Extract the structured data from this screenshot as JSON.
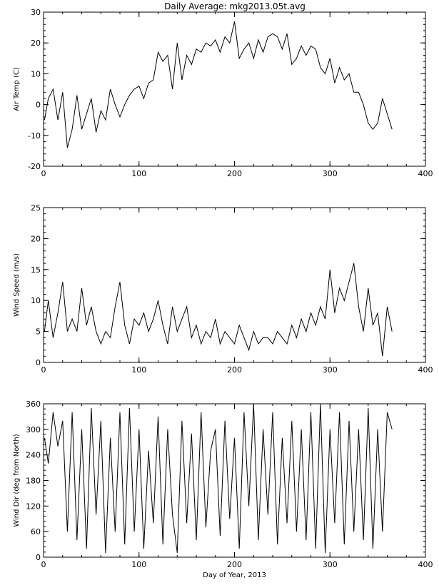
{
  "figure": {
    "title": "Daily Average: mkg2013.05t.avg"
  },
  "chart_data": [
    {
      "type": "line",
      "xlabel": "",
      "ylabel": "Air Temp (C)",
      "xlim": [
        0,
        400
      ],
      "ylim": [
        -20,
        30
      ],
      "xticks": [
        0,
        100,
        200,
        300,
        400
      ],
      "yticks": [
        -20,
        -10,
        0,
        10,
        20,
        30
      ],
      "grid": false,
      "x": [
        1,
        5,
        10,
        15,
        20,
        25,
        30,
        35,
        40,
        45,
        50,
        55,
        60,
        65,
        70,
        75,
        80,
        85,
        90,
        95,
        100,
        105,
        110,
        115,
        120,
        125,
        130,
        135,
        140,
        145,
        150,
        155,
        160,
        165,
        170,
        175,
        180,
        185,
        190,
        195,
        200,
        205,
        210,
        215,
        220,
        225,
        230,
        235,
        240,
        245,
        250,
        255,
        260,
        265,
        270,
        275,
        280,
        285,
        290,
        295,
        300,
        305,
        310,
        315,
        320,
        325,
        330,
        335,
        340,
        345,
        350,
        355,
        360,
        365
      ],
      "y": [
        -5,
        2,
        5,
        -5,
        4,
        -14,
        -8,
        3,
        -8,
        -3,
        2,
        -9,
        -2,
        -5,
        5,
        0,
        -4,
        0,
        3,
        5,
        6,
        2,
        7,
        8,
        17,
        14,
        16,
        5,
        20,
        8,
        16,
        13,
        18,
        17,
        20,
        19,
        21,
        17,
        22,
        20,
        27,
        15,
        18,
        20,
        15,
        21,
        17,
        22,
        23,
        22,
        18,
        23,
        13,
        15,
        19,
        16,
        19,
        18,
        12,
        10,
        15,
        7,
        12,
        8,
        10,
        4,
        4,
        0,
        -6,
        -8,
        -6,
        2,
        -3,
        -8
      ],
      "series": [
        {
          "name": "",
          "values": [
            -5,
            2,
            5,
            -5,
            4,
            -14,
            -8,
            3,
            -8,
            -3,
            2,
            -9,
            -2,
            -5,
            5,
            0,
            -4,
            0,
            3,
            5,
            6,
            2,
            7,
            8,
            17,
            14,
            16,
            5,
            20,
            8,
            16,
            13,
            18,
            17,
            20,
            19,
            21,
            17,
            22,
            20,
            27,
            15,
            18,
            20,
            15,
            21,
            17,
            22,
            23,
            22,
            18,
            23,
            13,
            15,
            19,
            16,
            19,
            18,
            12,
            10,
            15,
            7,
            12,
            8,
            10,
            4,
            4,
            0,
            -6,
            -8,
            -6,
            2,
            -3,
            -8
          ]
        }
      ]
    },
    {
      "type": "line",
      "xlabel": "",
      "ylabel": "Wind Speed (m/s)",
      "xlim": [
        0,
        400
      ],
      "ylim": [
        0,
        25
      ],
      "xticks": [
        0,
        100,
        200,
        300,
        400
      ],
      "yticks": [
        0,
        5,
        10,
        15,
        20,
        25
      ],
      "grid": false,
      "x": [
        1,
        5,
        10,
        15,
        20,
        25,
        30,
        35,
        40,
        45,
        50,
        55,
        60,
        65,
        70,
        75,
        80,
        85,
        90,
        95,
        100,
        105,
        110,
        115,
        120,
        125,
        130,
        135,
        140,
        145,
        150,
        155,
        160,
        165,
        170,
        175,
        180,
        185,
        190,
        195,
        200,
        205,
        210,
        215,
        220,
        225,
        230,
        235,
        240,
        245,
        250,
        255,
        260,
        265,
        270,
        275,
        280,
        285,
        290,
        295,
        300,
        305,
        310,
        315,
        320,
        325,
        330,
        335,
        340,
        345,
        350,
        355,
        360,
        365
      ],
      "y": [
        5,
        10,
        4,
        8,
        13,
        5,
        7,
        5,
        12,
        6,
        9,
        5,
        3,
        5,
        4,
        9,
        13,
        6,
        3,
        7,
        6,
        8,
        5,
        7,
        10,
        6,
        3,
        9,
        5,
        7,
        9,
        4,
        6,
        3,
        5,
        4,
        7,
        3,
        5,
        4,
        3,
        6,
        4,
        2,
        5,
        3,
        4,
        4,
        3,
        5,
        4,
        3,
        6,
        4,
        7,
        5,
        8,
        6,
        9,
        7,
        15,
        8,
        12,
        10,
        13,
        16,
        9,
        5,
        12,
        6,
        8,
        1,
        9,
        5
      ],
      "series": [
        {
          "name": "",
          "values": [
            5,
            10,
            4,
            8,
            13,
            5,
            7,
            5,
            12,
            6,
            9,
            5,
            3,
            5,
            4,
            9,
            13,
            6,
            3,
            7,
            6,
            8,
            5,
            7,
            10,
            6,
            3,
            9,
            5,
            7,
            9,
            4,
            6,
            3,
            5,
            4,
            7,
            3,
            5,
            4,
            3,
            6,
            4,
            2,
            5,
            3,
            4,
            4,
            3,
            5,
            4,
            3,
            6,
            4,
            7,
            5,
            8,
            6,
            9,
            7,
            15,
            8,
            12,
            10,
            13,
            16,
            9,
            5,
            12,
            6,
            8,
            1,
            9,
            5
          ]
        }
      ]
    },
    {
      "type": "line",
      "xlabel": "Day of Year, 2013",
      "ylabel": "Wind Dir (deg from North)",
      "xlim": [
        0,
        400
      ],
      "ylim": [
        0,
        360
      ],
      "xticks": [
        0,
        100,
        200,
        300,
        400
      ],
      "yticks": [
        0,
        60,
        120,
        180,
        240,
        300,
        360
      ],
      "grid": false,
      "x": [
        1,
        5,
        10,
        15,
        20,
        25,
        30,
        35,
        40,
        45,
        50,
        55,
        60,
        65,
        70,
        75,
        80,
        85,
        90,
        95,
        100,
        105,
        110,
        115,
        120,
        125,
        130,
        135,
        140,
        145,
        150,
        155,
        160,
        165,
        170,
        175,
        180,
        185,
        190,
        195,
        200,
        205,
        210,
        215,
        220,
        225,
        230,
        235,
        240,
        245,
        250,
        255,
        260,
        265,
        270,
        275,
        280,
        285,
        290,
        295,
        300,
        305,
        310,
        315,
        320,
        325,
        330,
        335,
        340,
        345,
        350,
        355,
        360,
        365
      ],
      "y": [
        280,
        220,
        340,
        260,
        320,
        60,
        340,
        40,
        300,
        20,
        350,
        100,
        320,
        10,
        280,
        60,
        340,
        30,
        350,
        60,
        300,
        20,
        250,
        80,
        330,
        30,
        300,
        100,
        10,
        320,
        80,
        290,
        40,
        340,
        70,
        250,
        300,
        50,
        320,
        90,
        280,
        20,
        340,
        120,
        360,
        40,
        300,
        100,
        340,
        30,
        280,
        80,
        320,
        60,
        300,
        40,
        340,
        20,
        360,
        10,
        300,
        80,
        340,
        30,
        320,
        60,
        300,
        40,
        350,
        20,
        300,
        60,
        340,
        300
      ],
      "series": [
        {
          "name": "",
          "values": [
            280,
            220,
            340,
            260,
            320,
            60,
            340,
            40,
            300,
            20,
            350,
            100,
            320,
            10,
            280,
            60,
            340,
            30,
            350,
            60,
            300,
            20,
            250,
            80,
            330,
            30,
            300,
            100,
            10,
            320,
            80,
            290,
            40,
            340,
            70,
            250,
            300,
            50,
            320,
            90,
            280,
            20,
            340,
            120,
            360,
            40,
            300,
            100,
            340,
            30,
            280,
            80,
            320,
            60,
            300,
            40,
            340,
            20,
            360,
            10,
            300,
            80,
            340,
            30,
            320,
            60,
            300,
            40,
            350,
            20,
            300,
            60,
            340,
            300
          ]
        }
      ]
    }
  ]
}
